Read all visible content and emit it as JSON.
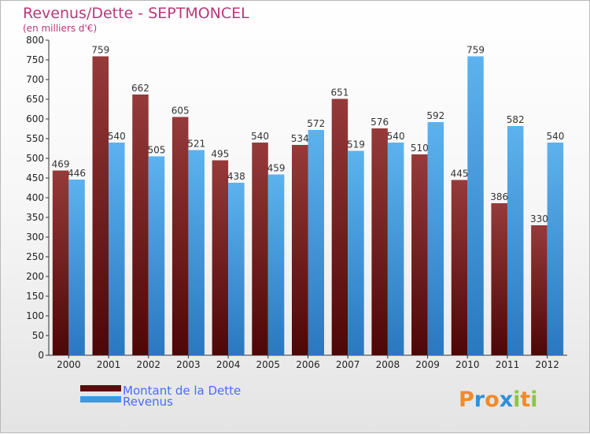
{
  "chart_data": {
    "type": "bar",
    "title": "Revenus/Dette - SEPTMONCEL",
    "subtitle": "(en milliers d'€)",
    "categories": [
      "2000",
      "2001",
      "2002",
      "2003",
      "2004",
      "2005",
      "2006",
      "2007",
      "2008",
      "2009",
      "2010",
      "2011",
      "2012"
    ],
    "series": [
      {
        "name": "Montant de la Dette",
        "color": "#7a1f1f",
        "values": [
          469,
          759,
          662,
          605,
          495,
          540,
          534,
          651,
          576,
          510,
          445,
          386,
          330
        ]
      },
      {
        "name": "Revenus",
        "color": "#3d9ae0",
        "values": [
          446,
          540,
          505,
          521,
          438,
          459,
          572,
          519,
          540,
          592,
          759,
          582,
          540
        ]
      }
    ],
    "ylim": [
      0,
      800
    ],
    "ytick_step": 50,
    "grid": false,
    "legend_position": "bottom-left"
  },
  "logo": {
    "letters": [
      "P",
      "r",
      "o",
      "x",
      "i",
      "t",
      "i"
    ],
    "colors": [
      "#f08a2a",
      "#2f8fd8",
      "#f08a2a",
      "#2f8fd8",
      "#8cc63f",
      "#f08a2a",
      "#8cc63f"
    ]
  }
}
